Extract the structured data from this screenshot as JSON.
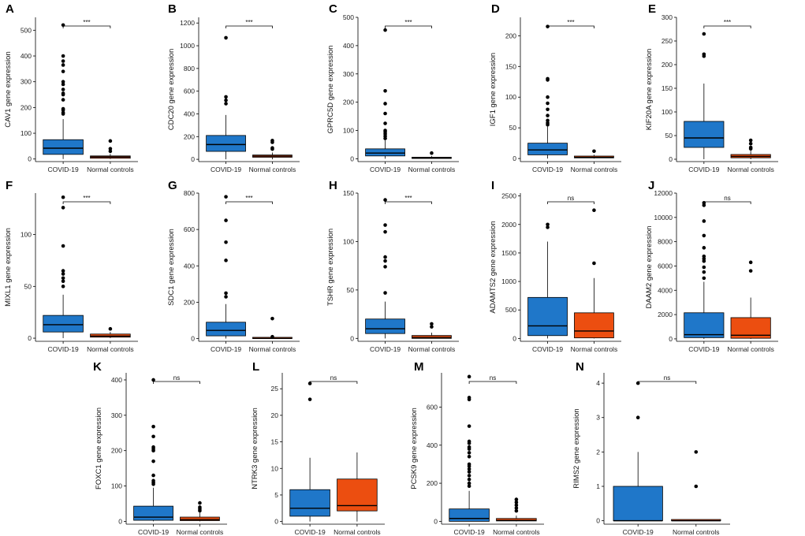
{
  "figure": {
    "groups": [
      "COVID-19",
      "Normal controls"
    ],
    "colors": {
      "covid": "#1F77C9",
      "normal": "#EC4E10"
    }
  },
  "chart_data": [
    {
      "type": "box",
      "panel": "A",
      "ylabel": "CAV1 gene expression",
      "ylim": [
        -10,
        550
      ],
      "yticks": [
        0,
        100,
        200,
        300,
        400,
        500
      ],
      "significance": "***",
      "boxes": [
        {
          "group": "COVID-19",
          "q1": 18,
          "median": 42,
          "q3": 75,
          "whisker_low": 0,
          "whisker_high": 155,
          "outliers": [
            520,
            400,
            380,
            365,
            340,
            300,
            290,
            270,
            255,
            250,
            230,
            195,
            190,
            180,
            175
          ]
        },
        {
          "group": "Normal controls",
          "q1": 3,
          "median": 8,
          "q3": 12,
          "whisker_low": 0,
          "whisker_high": 20,
          "outliers": [
            70,
            40,
            30
          ]
        }
      ]
    },
    {
      "type": "box",
      "panel": "B",
      "ylabel": "CDC20 gene expression",
      "ylim": [
        -20,
        1250
      ],
      "yticks": [
        0,
        200,
        400,
        600,
        800,
        1000,
        1200
      ],
      "significance": "***",
      "boxes": [
        {
          "group": "COVID-19",
          "q1": 70,
          "median": 130,
          "q3": 210,
          "whisker_low": 0,
          "whisker_high": 390,
          "outliers": [
            1070,
            550,
            520,
            490
          ]
        },
        {
          "group": "Normal controls",
          "q1": 18,
          "median": 28,
          "q3": 38,
          "whisker_low": 0,
          "whisker_high": 60,
          "outliers": [
            165,
            150,
            100,
            90
          ]
        }
      ]
    },
    {
      "type": "box",
      "panel": "C",
      "ylabel": "GPRC5D gene expression",
      "ylim": [
        -10,
        500
      ],
      "yticks": [
        0,
        100,
        200,
        300,
        400,
        500
      ],
      "significance": "***",
      "boxes": [
        {
          "group": "COVID-19",
          "q1": 10,
          "median": 20,
          "q3": 35,
          "whisker_low": 0,
          "whisker_high": 65,
          "outliers": [
            455,
            240,
            195,
            160,
            125,
            100,
            95,
            88,
            80,
            72
          ]
        },
        {
          "group": "Normal controls",
          "q1": 1,
          "median": 3,
          "q3": 5,
          "whisker_low": 0,
          "whisker_high": 10,
          "outliers": [
            20
          ]
        }
      ]
    },
    {
      "type": "box",
      "panel": "D",
      "ylabel": "IGF1 gene expression",
      "ylim": [
        -5,
        230
      ],
      "yticks": [
        0,
        50,
        100,
        150,
        200
      ],
      "significance": "***",
      "boxes": [
        {
          "group": "COVID-19",
          "q1": 6,
          "median": 14,
          "q3": 25,
          "whisker_low": 0,
          "whisker_high": 52,
          "outliers": [
            215,
            130,
            128,
            100,
            90,
            80,
            70,
            62,
            58,
            55
          ]
        },
        {
          "group": "Normal controls",
          "q1": 1,
          "median": 2,
          "q3": 4,
          "whisker_low": 0,
          "whisker_high": 6,
          "outliers": [
            12
          ]
        }
      ]
    },
    {
      "type": "box",
      "panel": "E",
      "ylabel": "KIF20A gene expression",
      "ylim": [
        -5,
        300
      ],
      "yticks": [
        0,
        50,
        100,
        150,
        200,
        250,
        300
      ],
      "significance": "***",
      "boxes": [
        {
          "group": "COVID-19",
          "q1": 25,
          "median": 45,
          "q3": 80,
          "whisker_low": 0,
          "whisker_high": 160,
          "outliers": [
            265,
            222,
            218
          ]
        },
        {
          "group": "Normal controls",
          "q1": 3,
          "median": 6,
          "q3": 10,
          "whisker_low": 0,
          "whisker_high": 18,
          "outliers": [
            40,
            33,
            25,
            22
          ]
        }
      ]
    },
    {
      "type": "box",
      "panel": "F",
      "ylabel": "MIXL1 gene expression",
      "ylim": [
        -3,
        140
      ],
      "yticks": [
        0,
        50,
        100
      ],
      "significance": "***",
      "boxes": [
        {
          "group": "COVID-19",
          "q1": 6,
          "median": 13,
          "q3": 22,
          "whisker_low": 0,
          "whisker_high": 42,
          "outliers": [
            136,
            126,
            89,
            65,
            62,
            58,
            55,
            50
          ]
        },
        {
          "group": "Normal controls",
          "q1": 1,
          "median": 2,
          "q3": 4,
          "whisker_low": 0,
          "whisker_high": 6,
          "outliers": [
            9
          ]
        }
      ]
    },
    {
      "type": "box",
      "panel": "G",
      "ylabel": "SDC1 gene expression",
      "ylim": [
        -15,
        800
      ],
      "yticks": [
        0,
        200,
        400,
        600,
        800
      ],
      "significance": "***",
      "boxes": [
        {
          "group": "COVID-19",
          "q1": 15,
          "median": 45,
          "q3": 90,
          "whisker_low": 0,
          "whisker_high": 190,
          "outliers": [
            780,
            650,
            530,
            430,
            250,
            230
          ]
        },
        {
          "group": "Normal controls",
          "q1": 0,
          "median": 1,
          "q3": 3,
          "whisker_low": 0,
          "whisker_high": 6,
          "outliers": [
            110,
            10
          ]
        }
      ]
    },
    {
      "type": "box",
      "panel": "H",
      "ylabel": "TSHR gene expression",
      "ylim": [
        -3,
        150
      ],
      "yticks": [
        0,
        50,
        100,
        150
      ],
      "significance": "***",
      "boxes": [
        {
          "group": "COVID-19",
          "q1": 5,
          "median": 10,
          "q3": 20,
          "whisker_low": 0,
          "whisker_high": 38,
          "outliers": [
            143,
            117,
            110,
            84,
            80,
            74,
            47
          ]
        },
        {
          "group": "Normal controls",
          "q1": 0,
          "median": 1,
          "q3": 3,
          "whisker_low": 0,
          "whisker_high": 6,
          "outliers": [
            15,
            12
          ]
        }
      ]
    },
    {
      "type": "box",
      "panel": "I",
      "ylabel": "ADAMTS2 gene expression",
      "ylim": [
        -50,
        2550
      ],
      "yticks": [
        0,
        500,
        1000,
        1500,
        2000,
        2500
      ],
      "significance": "ns",
      "boxes": [
        {
          "group": "COVID-19",
          "q1": 50,
          "median": 220,
          "q3": 720,
          "whisker_low": 0,
          "whisker_high": 1700,
          "outliers": [
            2000,
            1950
          ]
        },
        {
          "group": "Normal controls",
          "q1": 10,
          "median": 130,
          "q3": 450,
          "whisker_low": 0,
          "whisker_high": 1060,
          "outliers": [
            2250,
            1320
          ]
        }
      ]
    },
    {
      "type": "box",
      "panel": "J",
      "ylabel": "DAAM2 gene expression",
      "ylim": [
        -200,
        12000
      ],
      "yticks": [
        0,
        2000,
        4000,
        6000,
        8000,
        10000,
        12000
      ],
      "significance": "ns",
      "boxes": [
        {
          "group": "COVID-19",
          "q1": 100,
          "median": 350,
          "q3": 2150,
          "whisker_low": 0,
          "whisker_high": 4700,
          "outliers": [
            11200,
            11000,
            9700,
            8500,
            7500,
            6800,
            6600,
            6400,
            5900,
            5500,
            5000
          ]
        },
        {
          "group": "Normal controls",
          "q1": 50,
          "median": 300,
          "q3": 1750,
          "whisker_low": 0,
          "whisker_high": 3400,
          "outliers": [
            6300,
            5600
          ]
        }
      ]
    },
    {
      "type": "box",
      "panel": "K",
      "ylabel": "FOXC1 gene expression",
      "ylim": [
        -8,
        420
      ],
      "yticks": [
        0,
        100,
        200,
        300,
        400
      ],
      "significance": "ns",
      "boxes": [
        {
          "group": "COVID-19",
          "q1": 3,
          "median": 12,
          "q3": 43,
          "whisker_low": 0,
          "whisker_high": 95,
          "outliers": [
            400,
            268,
            240,
            210,
            205,
            200,
            170,
            130,
            115,
            110,
            105
          ]
        },
        {
          "group": "Normal controls",
          "q1": 2,
          "median": 5,
          "q3": 12,
          "whisker_low": 0,
          "whisker_high": 25,
          "outliers": [
            52,
            40,
            35,
            30
          ]
        }
      ]
    },
    {
      "type": "box",
      "panel": "L",
      "ylabel": "NTRK3 gene expression",
      "ylim": [
        -0.5,
        28
      ],
      "yticks": [
        0,
        5,
        10,
        15,
        20,
        25
      ],
      "significance": "ns",
      "boxes": [
        {
          "group": "COVID-19",
          "q1": 1,
          "median": 2.5,
          "q3": 6,
          "whisker_low": 0,
          "whisker_high": 12,
          "outliers": [
            26,
            23
          ]
        },
        {
          "group": "Normal controls",
          "q1": 2,
          "median": 3,
          "q3": 8,
          "whisker_low": 0,
          "whisker_high": 13,
          "outliers": []
        }
      ]
    },
    {
      "type": "box",
      "panel": "M",
      "ylabel": "PCSK9 gene expression",
      "ylim": [
        -15,
        780
      ],
      "yticks": [
        0,
        200,
        400,
        600
      ],
      "significance": "ns",
      "boxes": [
        {
          "group": "COVID-19",
          "q1": 0,
          "median": 15,
          "q3": 65,
          "whisker_low": 0,
          "whisker_high": 160,
          "outliers": [
            760,
            650,
            640,
            500,
            420,
            410,
            390,
            380,
            360,
            340,
            300,
            290,
            275,
            260,
            240,
            220,
            200,
            185
          ]
        },
        {
          "group": "Normal controls",
          "q1": 2,
          "median": 5,
          "q3": 15,
          "whisker_low": 0,
          "whisker_high": 30,
          "outliers": [
            115,
            100,
            85,
            70,
            55
          ]
        }
      ]
    },
    {
      "type": "box",
      "panel": "N",
      "ylabel": "RIMS2 gene expression",
      "ylim": [
        -0.1,
        4.3
      ],
      "yticks": [
        0,
        1,
        2,
        3,
        4
      ],
      "significance": "ns",
      "boxes": [
        {
          "group": "COVID-19",
          "q1": 0,
          "median": 0,
          "q3": 1,
          "whisker_low": 0,
          "whisker_high": 2,
          "outliers": [
            4,
            3
          ]
        },
        {
          "group": "Normal controls",
          "q1": 0,
          "median": 0,
          "q3": 0,
          "whisker_low": 0,
          "whisker_high": 0,
          "outliers": [
            2,
            1
          ]
        }
      ]
    }
  ]
}
